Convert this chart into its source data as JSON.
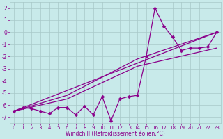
{
  "background_color": "#c8eaea",
  "grid_color": "#a8c8c8",
  "line_color": "#8b008b",
  "xlabel": "Windchill (Refroidissement éolien,°C)",
  "ylim": [
    -7.5,
    2.5
  ],
  "xlim": [
    -0.5,
    23.5
  ],
  "yticks": [
    2,
    1,
    0,
    -1,
    -2,
    -3,
    -4,
    -5,
    -6,
    -7
  ],
  "xticks": [
    0,
    1,
    2,
    3,
    4,
    5,
    6,
    7,
    8,
    9,
    10,
    11,
    12,
    13,
    14,
    15,
    16,
    17,
    18,
    19,
    20,
    21,
    22,
    23
  ],
  "series_main_x": [
    0,
    1,
    2,
    3,
    4,
    5,
    6,
    7,
    8,
    9,
    10,
    11,
    12,
    13,
    14,
    15,
    16,
    17,
    18,
    19,
    20,
    21,
    22,
    23
  ],
  "series_main_y": [
    -6.5,
    -6.2,
    -6.3,
    -6.5,
    -6.7,
    -6.2,
    -6.2,
    -6.8,
    -6.1,
    -6.8,
    -5.3,
    -7.3,
    -5.5,
    -5.3,
    -5.2,
    -2.0,
    2.0,
    0.5,
    -0.4,
    -1.5,
    -1.3,
    -1.3,
    -1.2,
    0.0
  ],
  "trend1_x": [
    0,
    23
  ],
  "trend1_y": [
    -6.5,
    0.0
  ],
  "trend2_x": [
    0,
    6,
    14,
    23
  ],
  "trend2_y": [
    -6.5,
    -5.5,
    -2.8,
    -1.3
  ],
  "trend3_x": [
    0,
    6,
    14,
    23
  ],
  "trend3_y": [
    -6.5,
    -5.2,
    -2.2,
    0.0
  ],
  "marker": "D",
  "marker_size": 2.5,
  "linewidth": 0.9,
  "tick_fontsize": 5.0,
  "xlabel_fontsize": 5.5
}
